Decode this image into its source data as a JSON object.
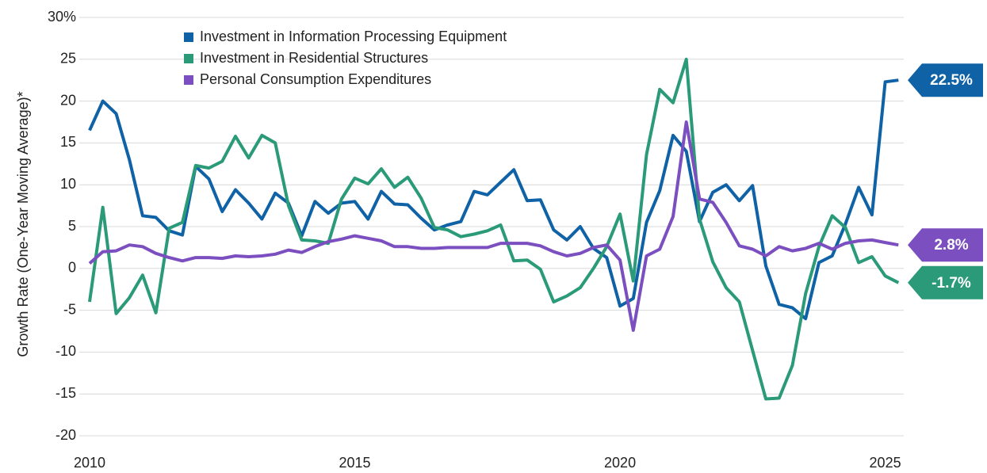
{
  "chart_data": {
    "type": "line",
    "ylabel": "Growth Rate (One-Year Moving Average)*",
    "x": [
      2010,
      2010.25,
      2010.5,
      2010.75,
      2011,
      2011.25,
      2011.5,
      2011.75,
      2012,
      2012.25,
      2012.5,
      2012.75,
      2013,
      2013.25,
      2013.5,
      2013.75,
      2014,
      2014.25,
      2014.5,
      2014.75,
      2015,
      2015.25,
      2015.5,
      2015.75,
      2016,
      2016.25,
      2016.5,
      2016.75,
      2017,
      2017.25,
      2017.5,
      2017.75,
      2018,
      2018.25,
      2018.5,
      2018.75,
      2019,
      2019.25,
      2019.5,
      2019.75,
      2020,
      2020.25,
      2020.5,
      2020.75,
      2021,
      2021.25,
      2021.5,
      2021.75,
      2022,
      2022.25,
      2022.5,
      2022.75,
      2023,
      2023.25,
      2023.5,
      2023.75,
      2024,
      2024.25,
      2024.5,
      2024.75,
      2025,
      2025.25
    ],
    "series": [
      {
        "name": "Investment in Information Processing Equipment",
        "color": "#0f62a6",
        "values": [
          16.5,
          20,
          18.5,
          13,
          6.3,
          6.1,
          4.5,
          4.0,
          12.2,
          10.7,
          6.8,
          9.4,
          7.8,
          5.9,
          9.0,
          7.8,
          3.9,
          8.0,
          6.6,
          7.8,
          8.0,
          5.9,
          9.2,
          7.7,
          7.6,
          6.0,
          4.6,
          5.2,
          5.6,
          9.2,
          8.8,
          10.3,
          11.8,
          8.1,
          8.2,
          4.6,
          3.4,
          5.0,
          2.4,
          1.3,
          -4.5,
          -3.6,
          5.5,
          9.3,
          15.9,
          14.0,
          5.6,
          9.1,
          10.0,
          8.1,
          9.9,
          0.3,
          -4.3,
          -4.7,
          -6.0,
          0.7,
          1.5,
          5.3,
          9.7,
          6.4,
          22.3,
          22.5
        ],
        "value_labels": [
          null,
          null,
          null,
          null,
          null,
          null,
          null,
          null,
          null,
          null,
          null,
          null,
          null,
          null,
          null,
          null,
          null,
          null,
          null,
          null,
          null,
          null,
          null,
          null,
          null,
          null,
          null,
          null,
          null,
          null,
          null,
          null,
          null,
          null,
          null,
          null,
          null,
          null,
          null,
          null,
          null,
          null,
          null,
          null,
          null,
          null,
          null,
          null,
          null,
          null,
          null,
          null,
          null,
          null,
          null,
          null,
          null,
          null,
          null,
          null,
          null,
          "22.5%"
        ]
      },
      {
        "name": "Investment in Residential Structures",
        "color": "#2a9a78",
        "values": [
          -4.0,
          7.3,
          -5.4,
          -3.5,
          -0.8,
          -5.3,
          4.8,
          5.5,
          12.3,
          12.0,
          12.8,
          15.8,
          13.2,
          15.9,
          15.0,
          7.5,
          3.4,
          3.3,
          3.0,
          8.3,
          10.8,
          10.1,
          11.9,
          9.7,
          10.9,
          8.4,
          4.9,
          4.6,
          3.8,
          4.1,
          4.5,
          5.2,
          0.9,
          1.0,
          -0.1,
          -4.0,
          -3.3,
          -2.3,
          0,
          2.6,
          6.5,
          -1.5,
          13.6,
          21.4,
          19.8,
          25.0,
          5.9,
          0.8,
          -2.3,
          -4.0,
          -9.8,
          -15.6,
          -15.5,
          -11.6,
          -3.0,
          2.6,
          6.3,
          4.9,
          0.7,
          1.4,
          -0.9,
          -1.7
        ],
        "value_labels": [
          null,
          null,
          null,
          null,
          null,
          null,
          null,
          null,
          null,
          null,
          null,
          null,
          null,
          null,
          null,
          null,
          null,
          null,
          null,
          null,
          null,
          null,
          null,
          null,
          null,
          null,
          null,
          null,
          null,
          null,
          null,
          null,
          null,
          null,
          null,
          null,
          null,
          null,
          null,
          null,
          null,
          null,
          null,
          null,
          null,
          null,
          null,
          null,
          null,
          null,
          null,
          null,
          null,
          null,
          null,
          null,
          null,
          null,
          null,
          null,
          null,
          "-1.7%"
        ]
      },
      {
        "name": "Personal Consumption Expenditures",
        "color": "#7b4fbf",
        "values": [
          0.6,
          2.0,
          2.1,
          2.8,
          2.6,
          1.8,
          1.3,
          0.9,
          1.3,
          1.3,
          1.2,
          1.5,
          1.4,
          1.5,
          1.7,
          2.2,
          1.9,
          2.6,
          3.2,
          3.5,
          3.9,
          3.6,
          3.3,
          2.6,
          2.6,
          2.4,
          2.4,
          2.5,
          2.5,
          2.5,
          2.5,
          3.0,
          3.0,
          3.0,
          2.7,
          2.0,
          1.5,
          1.8,
          2.5,
          2.8,
          1.0,
          -7.4,
          1.5,
          2.3,
          6.2,
          17.5,
          8.3,
          7.9,
          5.5,
          2.7,
          2.3,
          1.5,
          2.6,
          2.1,
          2.4,
          3.0,
          2.3,
          3.0,
          3.3,
          3.4,
          3.1,
          2.8
        ],
        "value_labels": [
          null,
          null,
          null,
          null,
          null,
          null,
          null,
          null,
          null,
          null,
          null,
          null,
          null,
          null,
          null,
          null,
          null,
          null,
          null,
          null,
          null,
          null,
          null,
          null,
          null,
          null,
          null,
          null,
          null,
          null,
          null,
          null,
          null,
          null,
          null,
          null,
          null,
          null,
          null,
          null,
          null,
          null,
          null,
          null,
          null,
          null,
          null,
          null,
          null,
          null,
          null,
          null,
          null,
          null,
          null,
          null,
          null,
          null,
          null,
          null,
          null,
          "2.8%"
        ]
      }
    ],
    "xlim": [
      2010,
      2025.35
    ],
    "xticks": [
      2010,
      2015,
      2020,
      2025
    ],
    "ylim": [
      -20,
      30
    ],
    "yticks": [
      -20,
      -15,
      -10,
      -5,
      0,
      5,
      10,
      15,
      20,
      25,
      {
        "value": 30,
        "label": "30%"
      }
    ],
    "grid": true
  }
}
